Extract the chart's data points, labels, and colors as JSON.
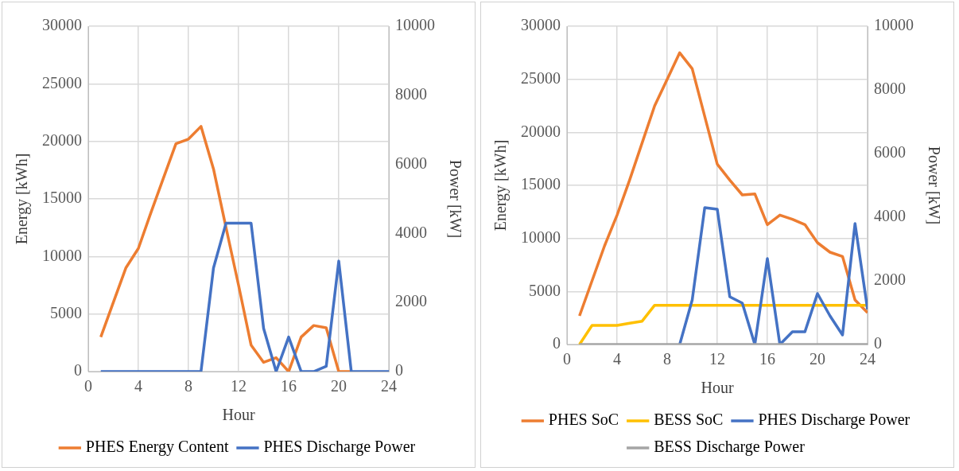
{
  "chart_data": [
    {
      "type": "line",
      "xlabel": "Hour",
      "ylabel": "Energy [kWh]",
      "y2label": "Power [kW]",
      "x": [
        1,
        2,
        3,
        4,
        5,
        6,
        7,
        8,
        9,
        10,
        11,
        12,
        13,
        14,
        15,
        16,
        17,
        18,
        19,
        20,
        21,
        22,
        23,
        24
      ],
      "xlim": [
        0,
        24
      ],
      "xticks": [
        0,
        4,
        8,
        12,
        16,
        20,
        24
      ],
      "ylim": [
        0,
        30000
      ],
      "yticks": [
        0,
        5000,
        10000,
        15000,
        20000,
        25000,
        30000
      ],
      "y2lim": [
        0,
        10000
      ],
      "y2ticks": [
        0,
        2000,
        4000,
        6000,
        8000,
        10000
      ],
      "grid": true,
      "legend": "bottom",
      "series": [
        {
          "name": "PHES Energy Content",
          "color": "#ed7d31",
          "values": [
            3000,
            6000,
            9000,
            10700,
            13800,
            16800,
            19800,
            20200,
            21300,
            17600,
            12500,
            7500,
            2300,
            800,
            1200,
            0,
            3000,
            4000,
            3800,
            0,
            0,
            null,
            null,
            null
          ]
        },
        {
          "name": "PHES Discharge Power",
          "color": "#4472c4",
          "axis": "y2",
          "values": [
            0,
            0,
            0,
            0,
            0,
            0,
            0,
            0,
            0,
            3000,
            4300,
            4300,
            4300,
            1250,
            0,
            1000,
            0,
            0,
            150,
            3200,
            0,
            0,
            0,
            0
          ]
        }
      ]
    },
    {
      "type": "line",
      "xlabel": "Hour",
      "ylabel": "Energy [kWh]",
      "y2label": "Power [kW]",
      "x": [
        1,
        2,
        3,
        4,
        5,
        6,
        7,
        8,
        9,
        10,
        11,
        12,
        13,
        14,
        15,
        16,
        17,
        18,
        19,
        20,
        21,
        22,
        23,
        24
      ],
      "xlim": [
        0,
        24
      ],
      "xticks": [
        0,
        4,
        8,
        12,
        16,
        20,
        24
      ],
      "ylim": [
        0,
        30000
      ],
      "yticks": [
        0,
        5000,
        10000,
        15000,
        20000,
        25000,
        30000
      ],
      "y2lim": [
        0,
        10000
      ],
      "y2ticks": [
        0,
        2000,
        4000,
        6000,
        8000,
        10000
      ],
      "grid": true,
      "legend": "bottom",
      "series": [
        {
          "name": "PHES SoC",
          "color": "#ed7d31",
          "values": [
            2700,
            6000,
            9300,
            12200,
            15500,
            19000,
            22500,
            25000,
            27500,
            26000,
            21500,
            17000,
            15500,
            14100,
            14200,
            11300,
            12200,
            11800,
            11300,
            9600,
            8700,
            8300,
            4200,
            3000
          ]
        },
        {
          "name": "BESS SoC",
          "color": "#ffc000",
          "values": [
            0,
            1800,
            1800,
            1800,
            2000,
            2200,
            3700,
            3700,
            3700,
            3700,
            3700,
            3700,
            3700,
            3700,
            3700,
            3700,
            3700,
            3700,
            3700,
            3700,
            3700,
            3700,
            3700,
            3700
          ]
        },
        {
          "name": "PHES Discharge Power",
          "color": "#4472c4",
          "axis": "y2",
          "values": [
            null,
            null,
            null,
            null,
            null,
            null,
            null,
            null,
            0,
            1400,
            4300,
            4250,
            1500,
            1300,
            0,
            2700,
            0,
            400,
            400,
            1600,
            900,
            300,
            3800,
            1100
          ]
        },
        {
          "name": "BESS Discharge Power",
          "color": "#a5a5a5",
          "axis": "y2",
          "values": [
            0,
            0,
            0,
            0,
            0,
            0,
            0,
            0,
            0,
            0,
            0,
            0,
            0,
            0,
            0,
            0,
            0,
            0,
            0,
            0,
            0,
            0,
            0,
            0
          ]
        }
      ]
    }
  ]
}
